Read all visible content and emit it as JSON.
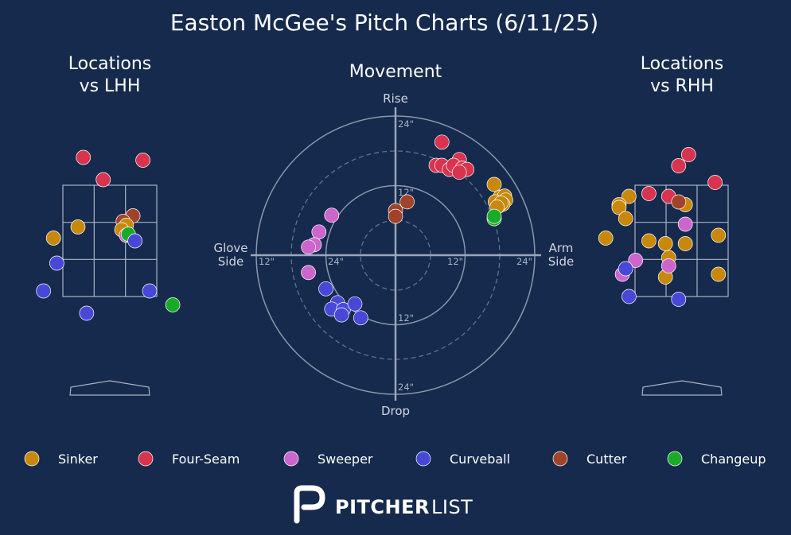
{
  "title": "Easton McGee's Pitch Charts (6/11/25)",
  "panels": {
    "lhh_title_1": "Locations",
    "lhh_title_2": "vs LHH",
    "movement_title": "Movement",
    "rhh_title_1": "Locations",
    "rhh_title_2": "vs RHH"
  },
  "movement_labels": {
    "top": "Rise",
    "bottom": "Drop",
    "left_1": "Glove",
    "left_2": "Side",
    "right_1": "Arm",
    "right_2": "Side",
    "ticks": [
      "24\"",
      "12\"",
      "12\"",
      "24\"",
      "12\"",
      "12\"",
      "24\"",
      "24\""
    ]
  },
  "brand": {
    "bold": "PITCHER",
    "light": "LIST"
  },
  "colors": {
    "background": "#152a4c",
    "Sinker": "#c8880a",
    "Four-Seam": "#d9344f",
    "Sweeper": "#cc66cc",
    "Curveball": "#4848d8",
    "Cutter": "#a0432a",
    "Changeup": "#1aaa2a"
  },
  "chart_data": [
    {
      "type": "scatter",
      "title": "Locations vs LHH",
      "strike_zone": true,
      "series": [
        {
          "name": "Four-Seam",
          "points": [
            [
              -0.4,
              4.0
            ],
            [
              0.5,
              3.95
            ],
            [
              -0.1,
              3.6
            ]
          ]
        },
        {
          "name": "Cutter",
          "points": [
            [
              0.35,
              2.95
            ],
            [
              0.2,
              2.85
            ]
          ]
        },
        {
          "name": "Sinker",
          "points": [
            [
              -0.48,
              2.75
            ],
            [
              0.25,
              2.78
            ],
            [
              0.18,
              2.7
            ],
            [
              -0.85,
              2.55
            ]
          ]
        },
        {
          "name": "Sweeper",
          "points": [
            [
              0.25,
              2.6
            ]
          ]
        },
        {
          "name": "Changeup",
          "points": [
            [
              0.28,
              2.62
            ],
            [
              0.95,
              1.35
            ]
          ]
        },
        {
          "name": "Curveball",
          "points": [
            [
              0.38,
              2.5
            ],
            [
              -0.8,
              2.1
            ],
            [
              -1.0,
              1.6
            ],
            [
              0.6,
              1.6
            ],
            [
              -0.35,
              1.2
            ]
          ]
        }
      ]
    },
    {
      "type": "scatter",
      "title": "Movement",
      "units": "inches",
      "x_axis": "Glove Side / Arm Side",
      "y_axis": "Drop / Rise",
      "xlim": [
        -28,
        28
      ],
      "ylim": [
        -28,
        28
      ],
      "rings": [
        6,
        12,
        18,
        24
      ],
      "series": [
        {
          "name": "Four-Seam",
          "points": [
            [
              8.0,
              19.5
            ],
            [
              11.0,
              16.5
            ],
            [
              7.0,
              15.5
            ],
            [
              8.0,
              15.5
            ],
            [
              9.3,
              14.8
            ],
            [
              10.0,
              15.5
            ],
            [
              11.5,
              15.0
            ],
            [
              12.3,
              14.8
            ],
            [
              11.0,
              14.3
            ]
          ]
        },
        {
          "name": "Sinker",
          "points": [
            [
              17.0,
              12.2
            ],
            [
              18.0,
              10.0
            ],
            [
              18.8,
              10.2
            ],
            [
              19.0,
              9.5
            ],
            [
              17.2,
              9.2
            ],
            [
              18.5,
              8.8
            ],
            [
              17.8,
              8.5
            ],
            [
              18.2,
              9.0
            ],
            [
              17.5,
              8.3
            ]
          ]
        },
        {
          "name": "Changeup",
          "points": [
            [
              17.0,
              6.3
            ],
            [
              17.0,
              6.7
            ]
          ]
        },
        {
          "name": "Cutter",
          "points": [
            [
              0.0,
              7.7
            ],
            [
              2.0,
              9.2
            ],
            [
              0.0,
              6.7
            ]
          ]
        },
        {
          "name": "Sweeper",
          "points": [
            [
              -11.0,
              6.9
            ],
            [
              -13.2,
              4.0
            ],
            [
              -14.0,
              1.8
            ],
            [
              -15.0,
              1.4
            ],
            [
              -15.0,
              -3.0
            ]
          ]
        },
        {
          "name": "Curveball",
          "points": [
            [
              -12.0,
              -5.8
            ],
            [
              -10.0,
              -8.2
            ],
            [
              -11.0,
              -9.3
            ],
            [
              -9.0,
              -9.4
            ],
            [
              -7.0,
              -8.4
            ],
            [
              -9.3,
              -10.3
            ],
            [
              -6.0,
              -10.8
            ]
          ]
        }
      ]
    },
    {
      "type": "scatter",
      "title": "Locations vs RHH",
      "strike_zone": true,
      "series": [
        {
          "name": "Four-Seam",
          "points": [
            [
              0.1,
              4.05
            ],
            [
              -0.05,
              3.85
            ],
            [
              0.5,
              3.55
            ],
            [
              -0.2,
              3.3
            ],
            [
              -0.5,
              3.35
            ]
          ]
        },
        {
          "name": "Sinker",
          "points": [
            [
              -0.8,
              3.3
            ],
            [
              -0.95,
              3.15
            ],
            [
              -0.95,
              3.1
            ],
            [
              -0.85,
              2.9
            ],
            [
              0.05,
              3.15
            ],
            [
              0.55,
              2.6
            ],
            [
              -0.5,
              2.5
            ],
            [
              -0.25,
              2.45
            ],
            [
              0.05,
              2.45
            ],
            [
              -0.2,
              2.2
            ],
            [
              -1.15,
              2.55
            ],
            [
              -0.25,
              1.85
            ],
            [
              0.55,
              1.9
            ]
          ]
        },
        {
          "name": "Cutter",
          "points": [
            [
              -0.05,
              3.2
            ]
          ]
        },
        {
          "name": "Sweeper",
          "points": [
            [
              0.05,
              2.8
            ],
            [
              -0.7,
              2.15
            ],
            [
              -0.2,
              2.05
            ],
            [
              -0.9,
              1.9
            ]
          ]
        },
        {
          "name": "Curveball",
          "points": [
            [
              -0.85,
              2.0
            ],
            [
              -0.8,
              1.5
            ],
            [
              -0.05,
              1.45
            ]
          ]
        }
      ]
    }
  ],
  "legend": [
    "Sinker",
    "Four-Seam",
    "Sweeper",
    "Curveball",
    "Cutter",
    "Changeup"
  ]
}
